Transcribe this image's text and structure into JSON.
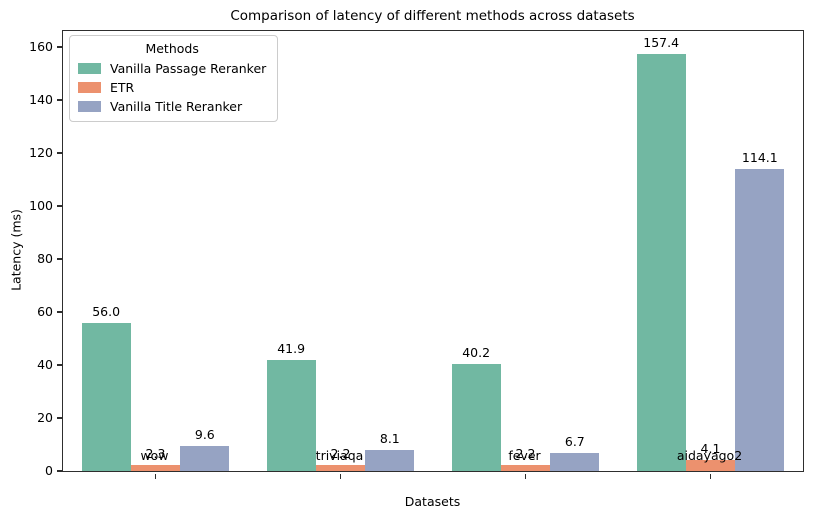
{
  "chart_data": {
    "type": "bar",
    "title": "Comparison of latency of different methods across datasets",
    "xlabel": "Datasets",
    "ylabel": "Latency (ms)",
    "categories": [
      "wow",
      "triviaqa",
      "fever",
      "aidayago2"
    ],
    "series": [
      {
        "name": "Vanilla Passage Reranker",
        "color": "#71b8a2",
        "values": [
          56.0,
          41.9,
          40.2,
          157.4
        ]
      },
      {
        "name": "ETR",
        "color": "#ec916e",
        "values": [
          2.3,
          2.2,
          2.2,
          4.1
        ]
      },
      {
        "name": "Vanilla Title Reranker",
        "color": "#96a3c3",
        "values": [
          9.6,
          8.1,
          6.7,
          114.1
        ]
      }
    ],
    "legend": {
      "title": "Methods",
      "position": "upper-left"
    },
    "ylim": [
      0,
      166
    ],
    "yticks": [
      0,
      20,
      40,
      60,
      80,
      100,
      120,
      140,
      160
    ],
    "grid": false,
    "bar_label_decimals": 1,
    "group_width_fraction": 0.8,
    "axis_color": "#2e2e2e"
  }
}
